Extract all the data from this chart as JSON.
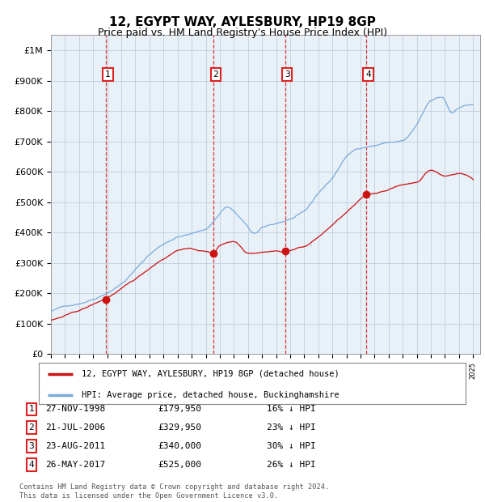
{
  "title": "12, EGYPT WAY, AYLESBURY, HP19 8GP",
  "subtitle": "Price paid vs. HM Land Registry's House Price Index (HPI)",
  "xlim": [
    1995.0,
    2025.5
  ],
  "ylim": [
    0,
    1050000
  ],
  "yticks": [
    0,
    100000,
    200000,
    300000,
    400000,
    500000,
    600000,
    700000,
    800000,
    900000,
    1000000
  ],
  "ytick_labels": [
    "£0",
    "£100K",
    "£200K",
    "£300K",
    "£400K",
    "£500K",
    "£600K",
    "£700K",
    "£800K",
    "£900K",
    "£1M"
  ],
  "hpi_color": "#7aabdb",
  "price_color": "#cc1111",
  "vline_color": "#dd2222",
  "plot_bg": "#e8f0f8",
  "sale_dates": [
    1998.9,
    2006.55,
    2011.64,
    2017.39
  ],
  "sale_prices": [
    179950,
    329950,
    340000,
    525000
  ],
  "sale_labels": [
    "1",
    "2",
    "3",
    "4"
  ],
  "legend_entries": [
    "12, EGYPT WAY, AYLESBURY, HP19 8GP (detached house)",
    "HPI: Average price, detached house, Buckinghamshire"
  ],
  "table_rows": [
    [
      "1",
      "27-NOV-1998",
      "£179,950",
      "16% ↓ HPI"
    ],
    [
      "2",
      "21-JUL-2006",
      "£329,950",
      "23% ↓ HPI"
    ],
    [
      "3",
      "23-AUG-2011",
      "£340,000",
      "30% ↓ HPI"
    ],
    [
      "4",
      "26-MAY-2017",
      "£525,000",
      "26% ↓ HPI"
    ]
  ],
  "footer": "Contains HM Land Registry data © Crown copyright and database right 2024.\nThis data is licensed under the Open Government Licence v3.0.",
  "title_fontsize": 11,
  "subtitle_fontsize": 9
}
